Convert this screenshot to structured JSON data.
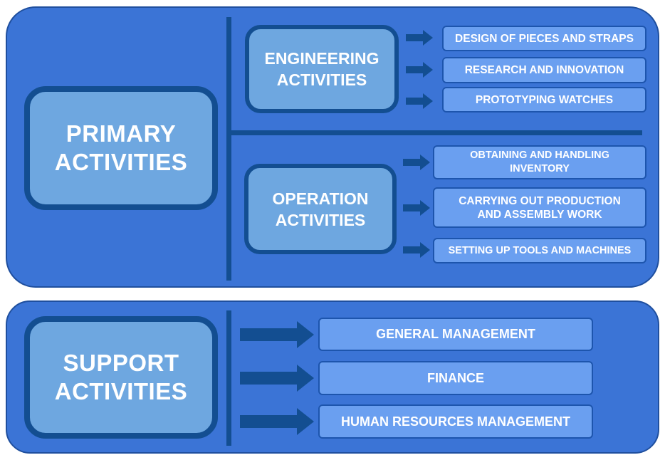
{
  "primary": {
    "label": "PRIMARY\nACTIVITIES",
    "engineering": {
      "label": "ENGINEERING\nACTIVITIES",
      "items": [
        "DESIGN OF PIECES AND STRAPS",
        "RESEARCH AND INNOVATION",
        "PROTOTYPING WATCHES"
      ]
    },
    "operation": {
      "label": "OPERATION\nACTIVITIES",
      "items": [
        "OBTAINING AND HANDLING\nINVENTORY",
        "CARRYING OUT PRODUCTION\nAND ASSEMBLY WORK",
        "SETTING UP TOOLS AND MACHINES"
      ]
    }
  },
  "support": {
    "label": "SUPPORT\nACTIVITIES",
    "items": [
      "GENERAL MANAGEMENT",
      "FINANCE",
      "HUMAN RESOURCES MANAGEMENT"
    ]
  },
  "colors": {
    "panel": "#3b74d6",
    "box_fill": "#6ea7e0",
    "dark_border": "#134e91",
    "item_fill": "#6a9ff0",
    "text": "#ffffff"
  }
}
